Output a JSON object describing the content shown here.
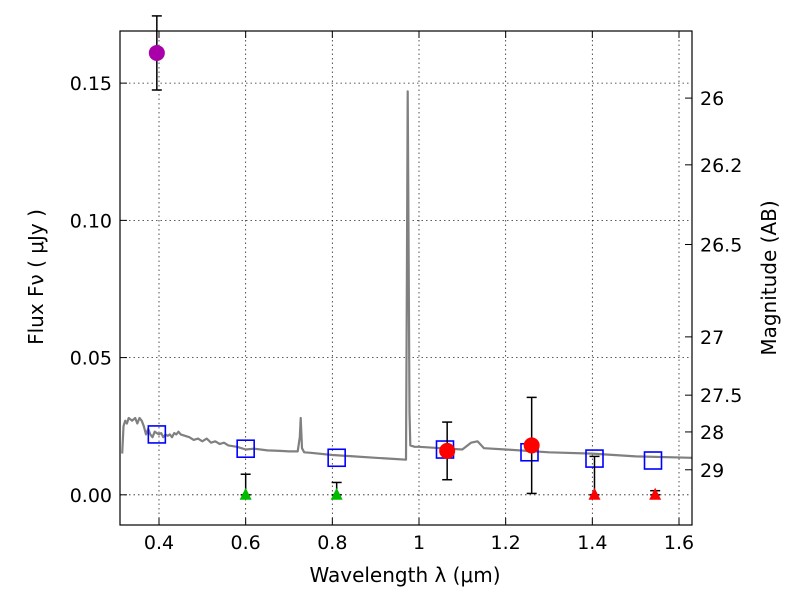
{
  "chart_data": {
    "type": "scatter",
    "xlabel": "Wavelength  λ (μm)",
    "ylabel": "Flux  Fν  ( μJy )",
    "y2label": "Magnitude (AB)",
    "xlim": [
      0.31,
      1.63
    ],
    "ylim": [
      -0.011,
      0.169
    ],
    "xticks": [
      "0.4",
      "0.6",
      "0.8",
      "1",
      "1.2",
      "1.4",
      "1.6"
    ],
    "xtick_values": [
      0.4,
      0.6,
      0.8,
      1.0,
      1.2,
      1.4,
      1.6
    ],
    "yticks": [
      "0.00",
      "0.05",
      "0.10",
      "0.15"
    ],
    "ytick_values": [
      0.0,
      0.05,
      0.1,
      0.15
    ],
    "magnitude_ticks": [
      "26",
      "26.2",
      "26.5",
      "27",
      "27.5",
      "28",
      "29"
    ],
    "magnitude_tick_values": [
      26,
      26.2,
      26.5,
      27,
      27.5,
      28,
      29
    ],
    "grid": true,
    "series": [
      {
        "name": "model_spectrum",
        "kind": "line",
        "color": "#808080",
        "x": [
          0.315,
          0.318,
          0.322,
          0.326,
          0.33,
          0.338,
          0.345,
          0.35,
          0.355,
          0.36,
          0.365,
          0.37,
          0.375,
          0.38,
          0.385,
          0.39,
          0.4,
          0.405,
          0.41,
          0.415,
          0.42,
          0.425,
          0.43,
          0.435,
          0.44,
          0.445,
          0.45,
          0.46,
          0.47,
          0.48,
          0.49,
          0.5,
          0.51,
          0.52,
          0.53,
          0.54,
          0.55,
          0.56,
          0.58,
          0.6,
          0.62,
          0.65,
          0.68,
          0.7,
          0.72,
          0.725,
          0.727,
          0.73,
          0.735,
          0.75,
          0.8,
          0.85,
          0.9,
          0.95,
          0.97,
          0.972,
          0.974,
          0.976,
          0.978,
          0.98,
          0.99,
          1.0,
          1.05,
          1.1,
          1.12,
          1.135,
          1.15,
          1.2,
          1.3,
          1.4,
          1.5,
          1.63
        ],
        "y": [
          0.015,
          0.025,
          0.027,
          0.026,
          0.028,
          0.027,
          0.028,
          0.026,
          0.028,
          0.027,
          0.025,
          0.022,
          0.024,
          0.022,
          0.021,
          0.023,
          0.022,
          0.0225,
          0.021,
          0.022,
          0.0215,
          0.022,
          0.021,
          0.0225,
          0.022,
          0.023,
          0.022,
          0.0215,
          0.021,
          0.02,
          0.0205,
          0.0195,
          0.0205,
          0.019,
          0.0195,
          0.0185,
          0.019,
          0.018,
          0.0175,
          0.0165,
          0.0168,
          0.0162,
          0.016,
          0.0158,
          0.0158,
          0.021,
          0.028,
          0.017,
          0.0155,
          0.0153,
          0.0145,
          0.014,
          0.0135,
          0.013,
          0.0128,
          0.08,
          0.147,
          0.09,
          0.03,
          0.018,
          0.0175,
          0.0175,
          0.017,
          0.0165,
          0.019,
          0.0195,
          0.017,
          0.0165,
          0.0155,
          0.015,
          0.014,
          0.0135
        ]
      },
      {
        "name": "model_photometry",
        "kind": "open_square",
        "color": "#0000ff",
        "x": [
          0.395,
          0.6,
          0.81,
          1.06,
          1.255,
          1.405,
          1.54
        ],
        "y": [
          0.022,
          0.0168,
          0.0135,
          0.0165,
          0.0155,
          0.0132,
          0.0125
        ]
      },
      {
        "name": "detection_purple",
        "kind": "filled_circle",
        "color": "#aa00aa",
        "x": [
          0.395
        ],
        "y": [
          0.161
        ],
        "yerr": [
          0.0135
        ]
      },
      {
        "name": "detections_red",
        "kind": "filled_circle",
        "color": "#ff0000",
        "x": [
          1.065,
          1.26
        ],
        "y": [
          0.016,
          0.018
        ],
        "yerr": [
          0.0105,
          0.0175
        ]
      },
      {
        "name": "upper_limits_green",
        "kind": "triangle",
        "color": "#00bb00",
        "x": [
          0.6,
          0.81
        ],
        "y": [
          0.0,
          0.0
        ],
        "errtop": [
          0.0075,
          0.0045
        ]
      },
      {
        "name": "upper_limits_red",
        "kind": "triangle",
        "color": "#ff0000",
        "x": [
          1.405,
          1.545
        ],
        "y": [
          0.0,
          0.0
        ],
        "errtop": [
          0.014,
          0.0015
        ]
      }
    ]
  }
}
